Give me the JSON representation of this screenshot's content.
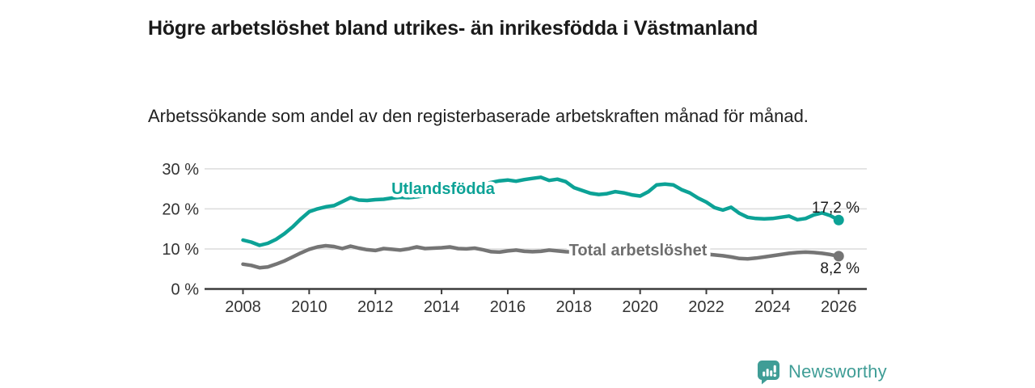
{
  "header": {
    "title": "Högre arbetslöshet bland utrikes- än inrikesfödda i Västmanland",
    "subtitle": "Arbetssökande som andel av den registerbaserade arbetskraften månad för månad."
  },
  "chart_data": {
    "type": "line",
    "unit": "%",
    "x_years": [
      2008.0,
      2008.25,
      2008.5,
      2008.75,
      2009.0,
      2009.25,
      2009.5,
      2009.75,
      2010.0,
      2010.25,
      2010.5,
      2010.75,
      2011.0,
      2011.25,
      2011.5,
      2011.75,
      2012.0,
      2012.25,
      2012.5,
      2012.75,
      2013.0,
      2013.25,
      2013.5,
      2013.75,
      2014.0,
      2014.25,
      2014.5,
      2014.75,
      2015.0,
      2015.25,
      2015.5,
      2015.75,
      2016.0,
      2016.25,
      2016.5,
      2016.75,
      2017.0,
      2017.25,
      2017.5,
      2017.75,
      2018.0,
      2018.25,
      2018.5,
      2018.75,
      2019.0,
      2019.25,
      2019.5,
      2019.75,
      2020.0,
      2020.25,
      2020.5,
      2020.75,
      2021.0,
      2021.25,
      2021.5,
      2021.75,
      2022.0,
      2022.25,
      2022.5,
      2022.75,
      2023.0,
      2023.25,
      2023.5,
      2023.75,
      2024.0,
      2024.25,
      2024.5,
      2024.75,
      2025.0,
      2025.25,
      2025.5,
      2025.75,
      2026.0
    ],
    "series": [
      {
        "name": "Utlandsfödda",
        "color": "#0ca296",
        "end_label": "17,2 %",
        "end_value": 17.2,
        "values": [
          12.2,
          11.7,
          10.9,
          11.4,
          12.4,
          13.8,
          15.5,
          17.5,
          19.3,
          20.0,
          20.5,
          20.8,
          21.8,
          22.8,
          22.2,
          22.1,
          22.3,
          22.4,
          22.7,
          22.9,
          22.8,
          23.0,
          23.3,
          23.6,
          24.0,
          24.4,
          24.9,
          25.3,
          25.7,
          26.2,
          26.6,
          27.0,
          27.2,
          26.9,
          27.3,
          27.6,
          27.9,
          27.1,
          27.4,
          26.8,
          25.3,
          24.6,
          23.9,
          23.6,
          23.8,
          24.3,
          24.0,
          23.5,
          23.2,
          24.3,
          26.0,
          26.2,
          26.0,
          24.8,
          24.0,
          22.7,
          21.7,
          20.3,
          19.7,
          20.4,
          18.9,
          17.9,
          17.6,
          17.5,
          17.6,
          17.9,
          18.2,
          17.3,
          17.6,
          18.5,
          19.0,
          18.3,
          17.2
        ]
      },
      {
        "name": "Total arbetslöshet",
        "color": "#757575",
        "end_label": "8,2 %",
        "end_value": 8.2,
        "values": [
          6.2,
          5.9,
          5.3,
          5.5,
          6.2,
          7.0,
          8.0,
          9.0,
          9.9,
          10.5,
          10.8,
          10.6,
          10.1,
          10.7,
          10.2,
          9.8,
          9.6,
          10.1,
          9.9,
          9.7,
          10.0,
          10.5,
          10.1,
          10.2,
          10.3,
          10.5,
          10.1,
          10.0,
          10.2,
          9.8,
          9.3,
          9.2,
          9.5,
          9.7,
          9.4,
          9.3,
          9.4,
          9.7,
          9.5,
          9.3,
          9.2,
          9.0,
          8.9,
          8.8,
          8.7,
          8.8,
          8.9,
          9.0,
          9.3,
          9.9,
          10.2,
          10.0,
          9.8,
          9.5,
          9.2,
          8.9,
          8.7,
          8.5,
          8.3,
          8.0,
          7.6,
          7.5,
          7.7,
          8.0,
          8.3,
          8.6,
          8.9,
          9.1,
          9.2,
          9.1,
          8.9,
          8.6,
          8.2
        ]
      }
    ],
    "x_ticks": [
      2008,
      2010,
      2012,
      2014,
      2016,
      2018,
      2020,
      2022,
      2024,
      2026
    ],
    "y_ticks": [
      {
        "value": 0,
        "label": "0 %"
      },
      {
        "value": 10,
        "label": "10 %"
      },
      {
        "value": 20,
        "label": "20 %"
      },
      {
        "value": 30,
        "label": "30 %"
      }
    ],
    "ylim": [
      0,
      30
    ],
    "xlim": [
      2006.85,
      2026.85
    ],
    "grid": "horizontal",
    "legend_position": "inline-labels"
  },
  "footer": {
    "brand": "Newsworthy",
    "brand_color": "#3f9d96",
    "logo_icon": "bar-chart-speech-bubble-icon"
  },
  "colors": {
    "accent_teal": "#0ca296",
    "series_gray": "#757575",
    "gridline": "#dcdcdc",
    "axis": "#3c3c3c",
    "text_dark": "#1a1a1a"
  }
}
